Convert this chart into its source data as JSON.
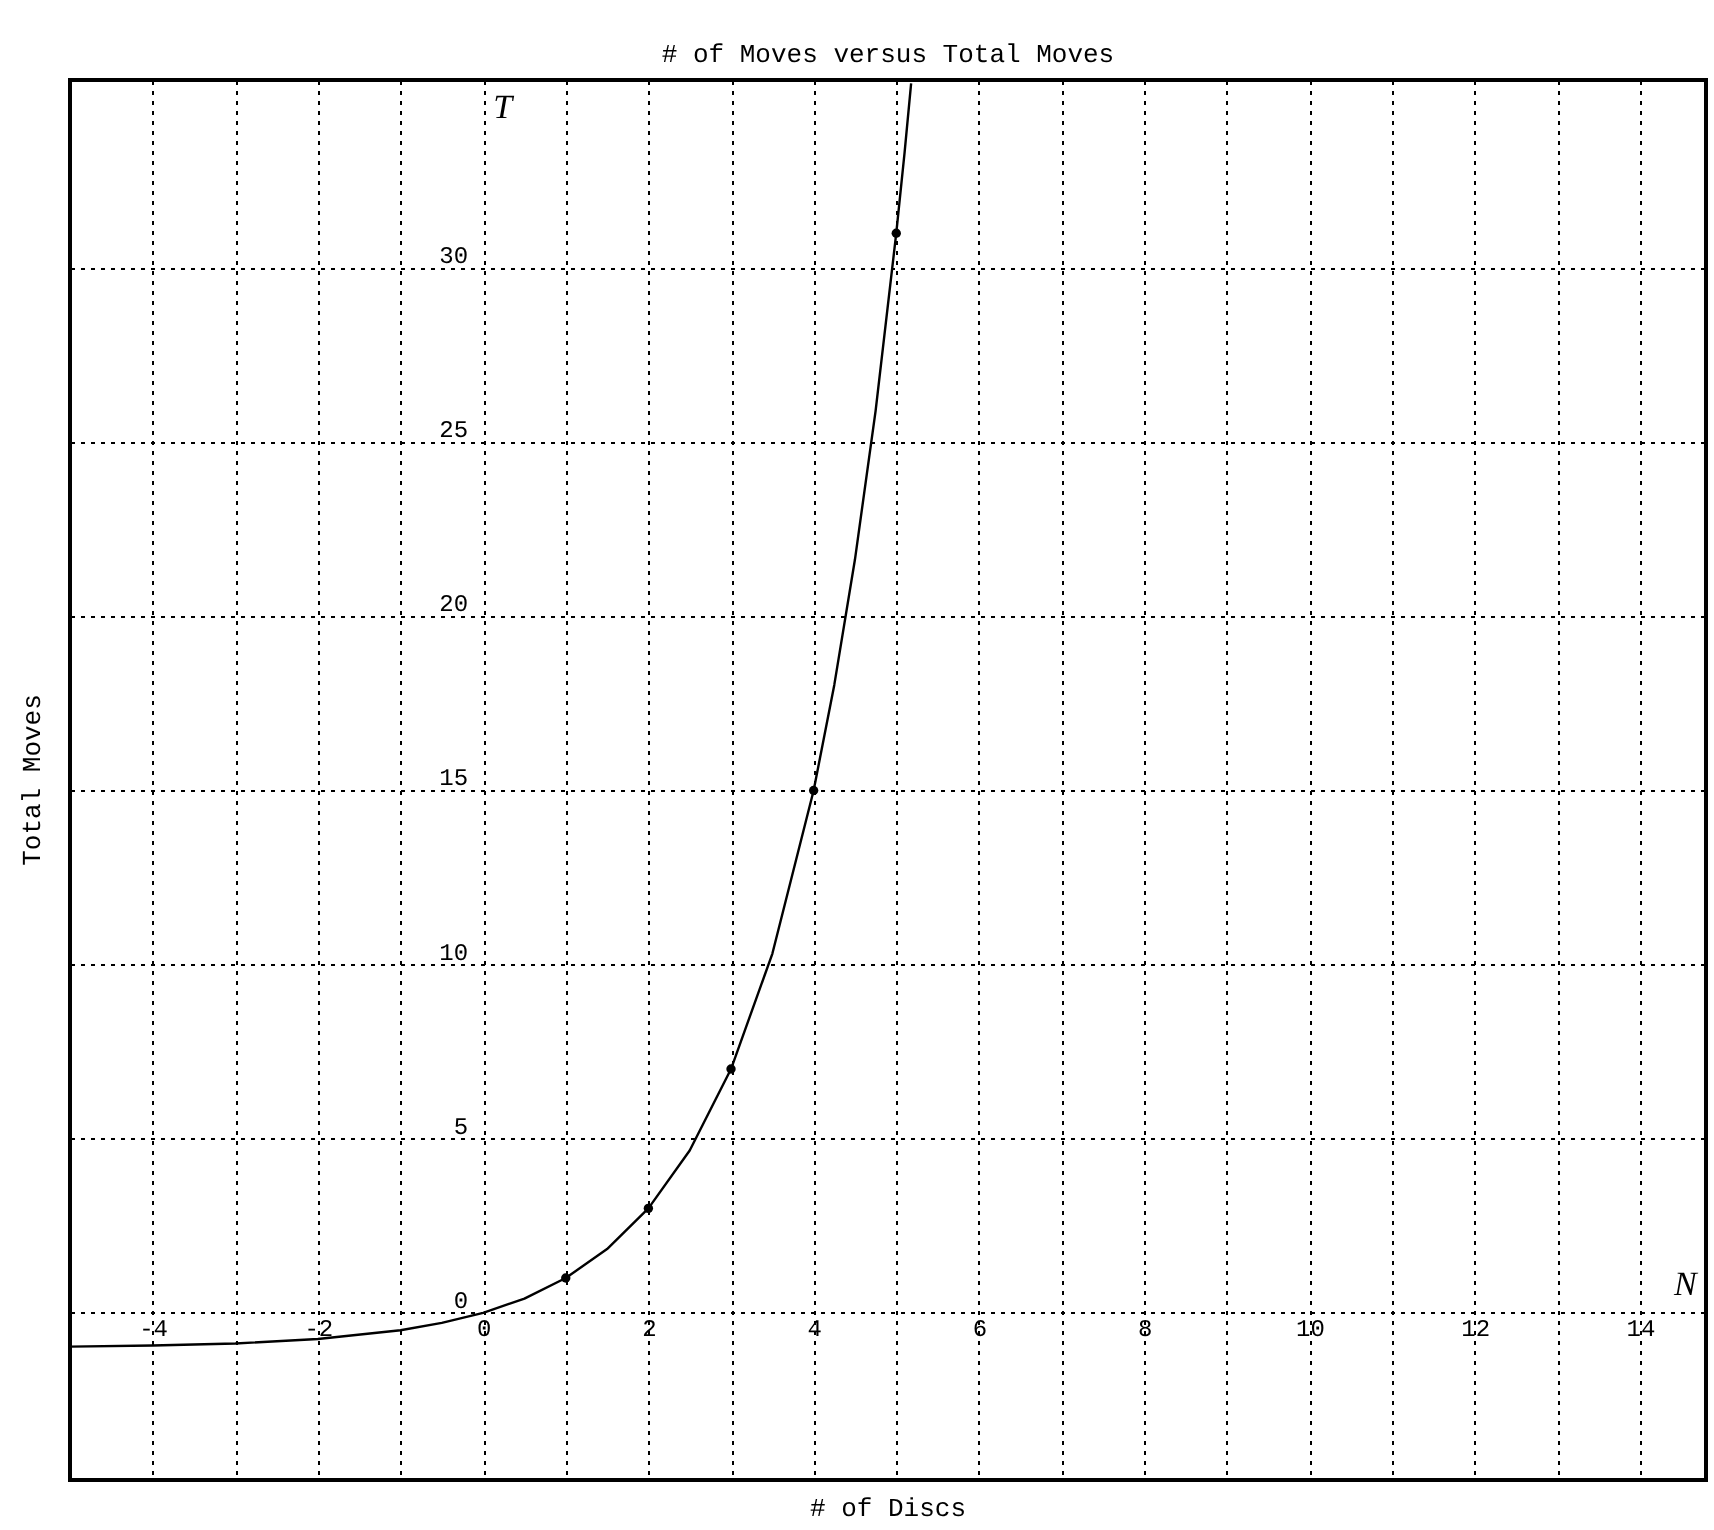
{
  "chart_data": {
    "type": "line",
    "title": "# of Moves versus Total Moves",
    "xlabel": "# of Discs",
    "ylabel": "Total Moves",
    "xlim": [
      -5,
      14.8
    ],
    "ylim": [
      -4.8,
      35.4
    ],
    "xticks": [
      {
        "value": -5,
        "label": null
      },
      -4,
      {
        "value": -3,
        "label": null
      },
      -2,
      {
        "value": -1,
        "label": null
      },
      0,
      {
        "value": 1,
        "label": null
      },
      2,
      {
        "value": 3,
        "label": null
      },
      4,
      {
        "value": 5,
        "label": null
      },
      6,
      {
        "value": 7,
        "label": null
      },
      8,
      {
        "value": 9,
        "label": null
      },
      10,
      {
        "value": 11,
        "label": null
      },
      12,
      {
        "value": 13,
        "label": null
      },
      14
    ],
    "yticks": [
      0,
      5,
      10,
      15,
      20,
      25,
      30
    ],
    "grid": true,
    "series": [
      {
        "color": "#000000",
        "marker": "none",
        "line_style": "solid",
        "x": [
          -5,
          -4,
          -3,
          -2,
          -1,
          -0.5,
          0,
          0.5,
          1,
          1.5,
          2,
          2.5,
          3,
          3.5,
          4,
          4.25,
          4.5,
          4.75,
          5,
          5.1,
          5.18
        ],
        "values": [
          -0.97,
          -0.94,
          -0.88,
          -0.75,
          -0.5,
          -0.29,
          0,
          0.41,
          1,
          1.83,
          3,
          4.66,
          7,
          10.31,
          15,
          18.03,
          21.63,
          25.9,
          31,
          33.3,
          35.3
        ]
      },
      {
        "type": "scatter",
        "color": "#000000",
        "marker": "circle",
        "x": [
          1,
          2,
          3,
          4,
          5
        ],
        "values": [
          1,
          3,
          7,
          15,
          31
        ]
      }
    ],
    "annotations": [
      "T",
      "N"
    ]
  }
}
